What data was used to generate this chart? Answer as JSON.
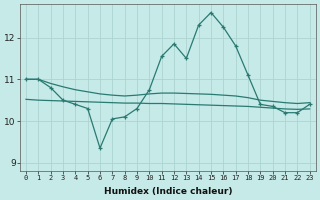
{
  "xlabel": "Humidex (Indice chaleur)",
  "background_color": "#c5eae8",
  "grid_color": "#aed4d2",
  "line_color": "#2a7a72",
  "hours": [
    0,
    1,
    2,
    3,
    4,
    5,
    6,
    7,
    8,
    9,
    10,
    11,
    12,
    13,
    14,
    15,
    16,
    17,
    18,
    19,
    20,
    21,
    22,
    23
  ],
  "main_line": [
    11.0,
    11.0,
    10.8,
    10.5,
    10.4,
    10.3,
    9.35,
    10.05,
    10.1,
    10.3,
    10.75,
    11.55,
    11.85,
    11.5,
    12.3,
    12.6,
    12.25,
    11.8,
    11.1,
    10.4,
    10.35,
    10.2,
    10.2,
    10.4
  ],
  "upper_line": [
    11.0,
    11.0,
    10.9,
    10.82,
    10.75,
    10.7,
    10.65,
    10.62,
    10.6,
    10.62,
    10.65,
    10.67,
    10.67,
    10.66,
    10.65,
    10.64,
    10.62,
    10.6,
    10.56,
    10.5,
    10.47,
    10.44,
    10.42,
    10.44
  ],
  "lower_line": [
    10.52,
    10.5,
    10.49,
    10.48,
    10.47,
    10.46,
    10.45,
    10.44,
    10.43,
    10.43,
    10.42,
    10.42,
    10.41,
    10.4,
    10.39,
    10.38,
    10.37,
    10.36,
    10.35,
    10.33,
    10.31,
    10.29,
    10.28,
    10.29
  ],
  "ylim": [
    8.8,
    12.8
  ],
  "yticks": [
    9,
    10,
    11,
    12
  ],
  "xlim": [
    -0.5,
    23.5
  ]
}
